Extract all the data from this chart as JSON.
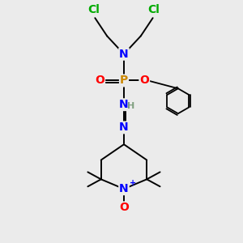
{
  "bg_color": "#ebebeb",
  "atom_colors": {
    "C": "#000000",
    "N": "#0000ff",
    "O": "#ff0000",
    "P": "#cc8800",
    "Cl": "#00aa00",
    "H": "#7f9f7f"
  },
  "bond_color": "#000000",
  "scale": 1.0
}
